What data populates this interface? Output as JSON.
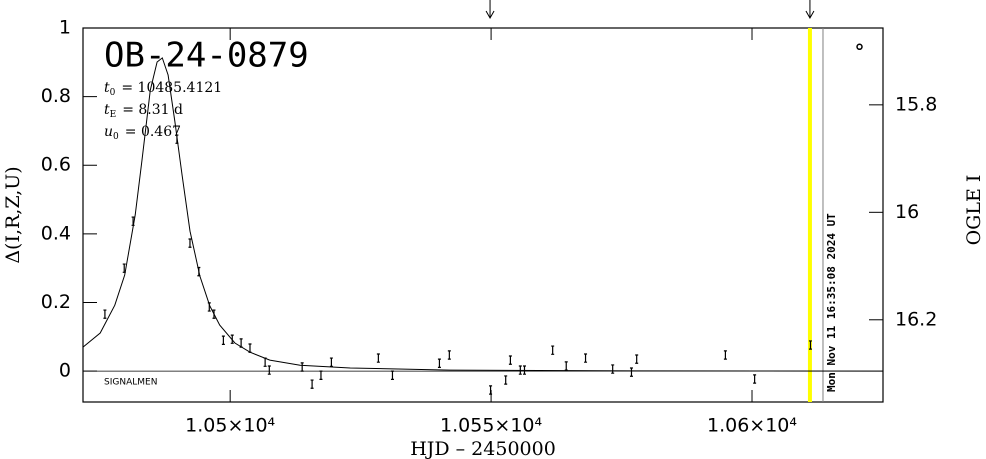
{
  "chart_data": {
    "type": "scatter",
    "title": "OB-24-0879",
    "params": [
      {
        "symbol": "t",
        "sub": "0",
        "text": "= 10485.4121"
      },
      {
        "symbol": "t",
        "sub": "E",
        "text": "= 8.31  d"
      },
      {
        "symbol": "u",
        "sub": "0",
        "text": "= 0.467"
      }
    ],
    "note": "SIGNALMEN",
    "timestamp": "Mon Nov 11 16:35:08 2024 UT",
    "xlabel": "HJD – 2450000",
    "ylabel": "Δ(I,R,Z,U)",
    "y2label": "OGLE I",
    "xlim": [
      10471.8,
      10625.1
    ],
    "ylim": [
      -0.09,
      1
    ],
    "y2lim": [
      15.657,
      16.353
    ],
    "xticks": [
      {
        "value": 10500,
        "label": "1.05×10⁴"
      },
      {
        "value": 10550,
        "label": "1.055×10⁴"
      },
      {
        "value": 10600,
        "label": "1.06×10⁴"
      }
    ],
    "yticks": [
      0,
      0.2,
      0.4,
      0.6,
      0.8,
      1
    ],
    "y2ticks": [
      15.8,
      16,
      16.2
    ],
    "x": [
      10476.0,
      10479.7,
      10481.4,
      10489.8,
      10492.3,
      10494.0,
      10496.0,
      10496.9,
      10498.7,
      10500.4,
      10502.1,
      10503.8,
      10506.7,
      10507.5,
      10513.8,
      10515.7,
      10517.4,
      10519.4,
      10528.4,
      10531.1,
      10540.1,
      10542.0,
      10549.9,
      10552.8,
      10553.7,
      10555.6,
      10556.4,
      10561.8,
      10564.4,
      10568.1,
      10573.3,
      10576.9,
      10577.9,
      10594.9,
      10600.5,
      10611.2
    ],
    "values": [
      0.166,
      0.3,
      0.437,
      0.676,
      0.373,
      0.29,
      0.187,
      0.166,
      0.09,
      0.093,
      0.082,
      0.067,
      0.026,
      0.003,
      0.012,
      -0.038,
      -0.012,
      0.026,
      0.038,
      -0.012,
      0.023,
      0.047,
      -0.055,
      -0.026,
      0.032,
      0.003,
      0.003,
      0.061,
      0.015,
      0.038,
      0.006,
      -0.003,
      0.035,
      0.047,
      -0.023,
      0.076
    ],
    "errors": [
      0.012,
      0.012,
      0.012,
      0.012,
      0.012,
      0.012,
      0.012,
      0.012,
      0.012,
      0.012,
      0.012,
      0.012,
      0.012,
      0.012,
      0.012,
      0.012,
      0.012,
      0.012,
      0.012,
      0.012,
      0.012,
      0.012,
      0.012,
      0.012,
      0.012,
      0.012,
      0.012,
      0.012,
      0.012,
      0.012,
      0.012,
      0.012,
      0.012,
      0.012,
      0.012,
      0.012
    ],
    "color": "#000000",
    "model": {
      "x": [
        10471.8,
        10475.1,
        10477.9,
        10479.8,
        10481.8,
        10483.1,
        10484.7,
        10486.0,
        10487.0,
        10488.1,
        10489.4,
        10490.8,
        10492.3,
        10494.2,
        10496.1,
        10498.0,
        10500.9,
        10503.8,
        10507.6,
        10513.4,
        10523.0,
        10542.1,
        10570.8,
        10625.1
      ],
      "values": [
        0.07,
        0.111,
        0.192,
        0.28,
        0.455,
        0.615,
        0.819,
        0.901,
        0.913,
        0.863,
        0.729,
        0.569,
        0.408,
        0.277,
        0.19,
        0.134,
        0.082,
        0.055,
        0.032,
        0.017,
        0.009,
        0.003,
        0.001,
        0
      ]
    },
    "ogle_point": {
      "x": 10620.6,
      "y2": 15.692
    },
    "now_line": {
      "x": 10611.1,
      "color": "#ffff00"
    },
    "date_line": {
      "x": 10613.6,
      "color": "#808080"
    },
    "arrows_x": [
      10549.8,
      10611.1
    ],
    "baseline": 0
  }
}
